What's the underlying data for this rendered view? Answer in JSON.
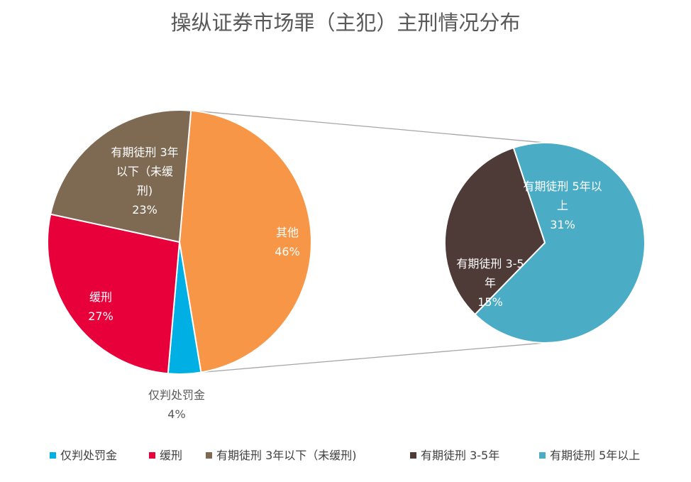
{
  "chart_data": {
    "type": "pie",
    "subtype": "pie-of-pie",
    "title": "操纵证券市场罪（主犯）主刑情况分布",
    "main_pie": {
      "slices": [
        {
          "key": "s0",
          "name": "其他",
          "value": 46,
          "value_label": "46%",
          "color": "#F79646",
          "label_lines": [
            "其他"
          ]
        },
        {
          "key": "s1",
          "name": "仅判处罚金",
          "value": 4,
          "value_label": "4%",
          "color": "#00B0E5",
          "label_lines": [
            "仅判处罚金"
          ]
        },
        {
          "key": "s2",
          "name": "缓刑",
          "value": 27,
          "value_label": "27%",
          "color": "#E8003A",
          "label_lines": [
            "缓刑"
          ]
        },
        {
          "key": "s3",
          "name": "有期徒刑 3年以下（未缓刑)",
          "value": 23,
          "value_label": "23%",
          "color": "#7E6A52",
          "label_lines": [
            "有期徒刑 3年",
            "以下（未缓",
            "刑)"
          ]
        }
      ]
    },
    "secondary_pie": {
      "slices": [
        {
          "key": "t0",
          "name": "有期徒刑 5年以上",
          "value": 31,
          "value_label": "31%",
          "color": "#4BACC6",
          "label_lines": [
            "有期徒刑 5年以",
            "上"
          ]
        },
        {
          "key": "t1",
          "name": "有期徒刑 3-5年",
          "value": 15,
          "value_label": "15%",
          "color": "#4E3A37",
          "label_lines": [
            "有期徒刑 3-5",
            "年"
          ]
        }
      ]
    },
    "legend": {
      "position": "bottom",
      "items": [
        {
          "label": "仅判处罚金",
          "color": "#00B0E5"
        },
        {
          "label": "缓刑",
          "color": "#E8003A"
        },
        {
          "label": "有期徒刑 3年以下（未缓刑)",
          "color": "#7E6A52"
        },
        {
          "label": "有期徒刑 3-5年",
          "color": "#4E3A37"
        },
        {
          "label": "有期徒刑 5年以上",
          "color": "#4BACC6"
        }
      ]
    },
    "connector_color": "#A6A6A6"
  }
}
